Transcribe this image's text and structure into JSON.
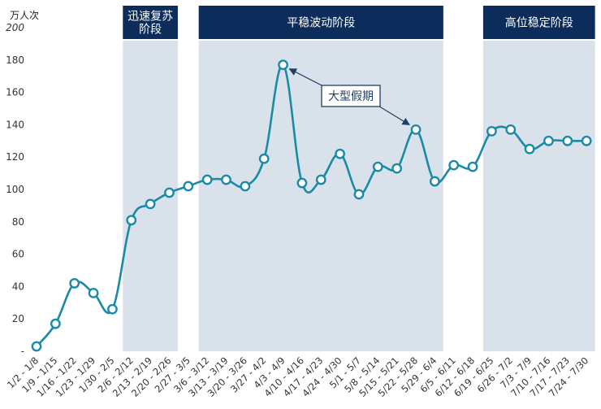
{
  "chart_data": {
    "type": "line",
    "ylabel": "万人次",
    "ylim": [
      0,
      200
    ],
    "yticks": [
      0,
      20,
      40,
      60,
      80,
      100,
      120,
      140,
      160,
      180,
      200
    ],
    "ytick_labels": [
      "-",
      "20",
      "40",
      "60",
      "80",
      "100",
      "120",
      "140",
      "160",
      "180",
      "200"
    ],
    "grid": false,
    "categories": [
      "1/2 - 1/8",
      "1/9 - 1/15",
      "1/16 - 1/22",
      "1/23 - 1/29",
      "1/30 - 2/5",
      "2/6 - 2/12",
      "2/13 - 2/19",
      "2/20 - 2/26",
      "2/27 - 3/5",
      "3/6 - 3/12",
      "3/13 - 3/19",
      "3/20 - 3/26",
      "3/27 - 4/2",
      "4/3 - 4/9",
      "4/10 - 4/16",
      "4/17 - 4/23",
      "4/24 - 4/30",
      "5/1 - 5/7",
      "5/8 - 5/14",
      "5/15 - 5/21",
      "5/22 - 5/28",
      "5/29 - 6/4",
      "6/5 - 6/11",
      "6/12 - 6/18",
      "6/19 - 6/25",
      "6/26 - 7/2",
      "7/3 - 7/9",
      "7/10 - 7/16",
      "7/17 - 7/23",
      "7/24 - 7/30"
    ],
    "series": [
      {
        "values": [
          3,
          17,
          42,
          36,
          26,
          81,
          91,
          98,
          102,
          106,
          106,
          102,
          119,
          177,
          104,
          106,
          122,
          97,
          114,
          113,
          137,
          105,
          115,
          114,
          136,
          137,
          125,
          130,
          130,
          130
        ]
      }
    ],
    "phases": [
      {
        "label": "迅速复苏阶段",
        "label_lines": [
          "迅速复苏",
          "阶段"
        ],
        "start": 5,
        "end": 7
      },
      {
        "label": "平稳波动阶段",
        "label_lines": [
          "平稳波动阶段"
        ],
        "start": 9,
        "end": 21
      },
      {
        "label": "高位稳定阶段",
        "label_lines": [
          "高位稳定阶段"
        ],
        "start": 24,
        "end": 29
      }
    ],
    "annotation": {
      "text": "大型假期",
      "targets": [
        13,
        20
      ]
    },
    "colors": {
      "line": "#1a8aa6",
      "marker_fill": "#ffffff",
      "phase_band": "#d9e2ea",
      "phase_header": "#0c2d5c",
      "phase_header_text": "#ffffff",
      "annotation_border": "#1f3f66",
      "annotation_text": "#1f3f66",
      "axis_text": "#333333"
    }
  }
}
